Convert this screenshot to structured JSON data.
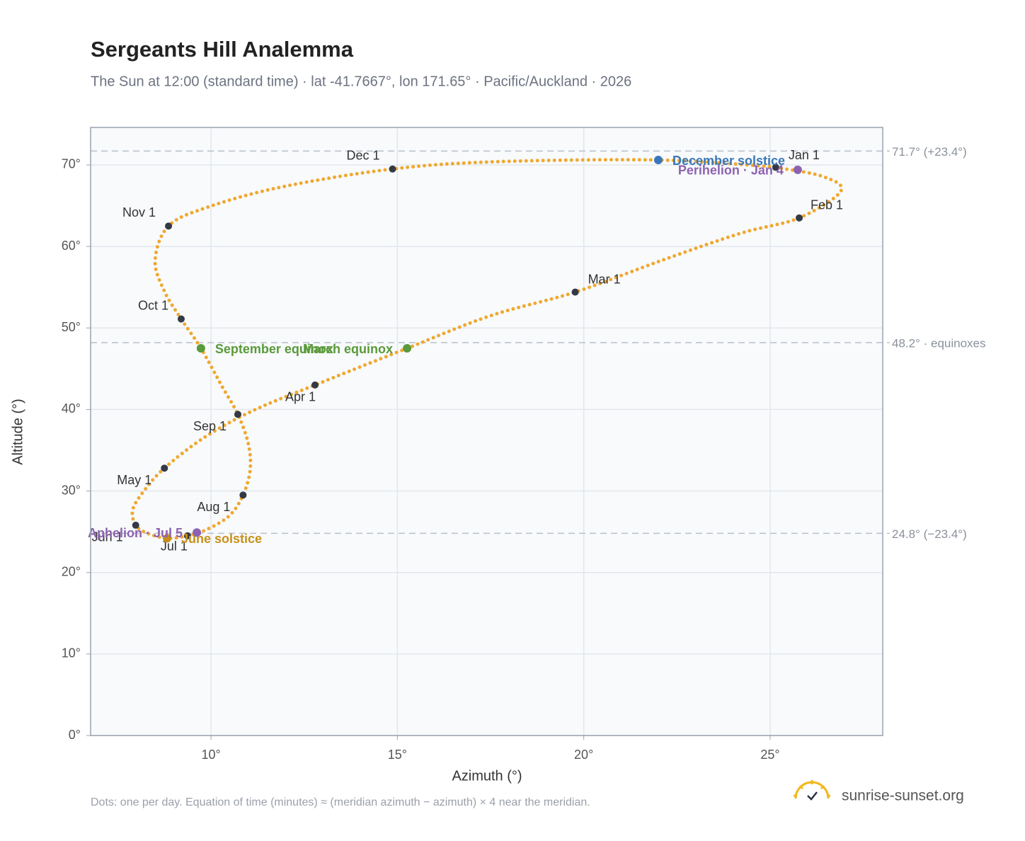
{
  "chart_data": {
    "type": "scatter",
    "title": "Sergeants Hill Analemma",
    "subtitle": "The Sun at 12:00 (standard time) · lat -41.7667°, lon 171.65° · Pacific/Auckland · 2026",
    "x_label": "Azimuth (°)",
    "y_label": "Altitude (°)",
    "footnote": "Dots: one per day. Equation of time (minutes) ≈ (meridian azimuth − azimuth) × 4 near the meridian.",
    "source": "sunrise-sunset.org",
    "xlim": [
      6.77,
      28.02
    ],
    "ylim": [
      0,
      74.6
    ],
    "xticks": [
      {
        "value": 10,
        "label": "10°"
      },
      {
        "value": 15,
        "label": "15°"
      },
      {
        "value": 20,
        "label": "20°"
      },
      {
        "value": 25,
        "label": "25°"
      }
    ],
    "yticks": [
      {
        "value": 0,
        "label": "0°"
      },
      {
        "value": 10,
        "label": "10°"
      },
      {
        "value": 20,
        "label": "20°"
      },
      {
        "value": 30,
        "label": "30°"
      },
      {
        "value": 40,
        "label": "40°"
      },
      {
        "value": 50,
        "label": "50°"
      },
      {
        "value": 60,
        "label": "60°"
      },
      {
        "value": 70,
        "label": "70°"
      }
    ],
    "grid": true,
    "color": "#f0a830",
    "x": [
      25.15,
      26.4,
      26.9,
      25.78,
      24.2,
      22.1,
      19.77,
      17.5,
      15.26,
      12.79,
      11.1,
      9.8,
      8.75,
      8.2,
      7.9,
      7.98,
      8.3,
      8.82,
      9.37,
      9.9,
      10.5,
      10.86,
      11.05,
      11.0,
      10.72,
      10.3,
      9.73,
      9.2,
      8.75,
      8.5,
      8.86,
      9.9,
      11.9,
      14.87,
      17.7,
      22.0,
      25.0
    ],
    "y": [
      69.7,
      68.6,
      66.8,
      63.5,
      61.6,
      58.3,
      54.4,
      51.5,
      47.5,
      43.0,
      39.8,
      36.5,
      32.8,
      30.0,
      27.7,
      25.8,
      24.8,
      24.2,
      24.5,
      25.3,
      27.0,
      29.5,
      32.6,
      35.8,
      39.4,
      42.8,
      47.5,
      51.1,
      54.5,
      58.3,
      62.5,
      64.8,
      67.3,
      69.5,
      70.4,
      70.6,
      69.8
    ],
    "reference_lines": [
      {
        "value": 71.7,
        "label": "71.7° (+23.4°)"
      },
      {
        "value": 48.2,
        "label": "48.2° · equinoxes"
      },
      {
        "value": 24.8,
        "label": "24.8° (−23.4°)"
      }
    ],
    "month_markers": [
      {
        "label": "Jan 1",
        "x": 25.15,
        "y": 69.7
      },
      {
        "label": "Feb 1",
        "x": 25.78,
        "y": 63.5
      },
      {
        "label": "Mar 1",
        "x": 19.77,
        "y": 54.4
      },
      {
        "label": "Apr 1",
        "x": 12.79,
        "y": 43.0
      },
      {
        "label": "May 1",
        "x": 8.75,
        "y": 32.8
      },
      {
        "label": "Jun 1",
        "x": 7.98,
        "y": 25.8
      },
      {
        "label": "Jul 1",
        "x": 9.37,
        "y": 24.5
      },
      {
        "label": "Aug 1",
        "x": 10.86,
        "y": 29.5
      },
      {
        "label": "Sep 1",
        "x": 10.72,
        "y": 39.4
      },
      {
        "label": "Oct 1",
        "x": 9.2,
        "y": 51.1
      },
      {
        "label": "Nov 1",
        "x": 8.86,
        "y": 62.5
      },
      {
        "label": "Dec 1",
        "x": 14.87,
        "y": 69.5
      }
    ],
    "marker_color": "#333a45",
    "events": [
      {
        "label": "December solstice",
        "x": 22.0,
        "y": 70.6,
        "color": "#3a77b8"
      },
      {
        "label": "Perihelion · Jan 4",
        "x": 25.74,
        "y": 69.4,
        "color": "#8e62b0"
      },
      {
        "label": "September equinox",
        "x": 9.73,
        "y": 47.5,
        "color": "#5a9a3a"
      },
      {
        "label": "March equinox",
        "x": 15.26,
        "y": 47.5,
        "color": "#5a9a3a"
      },
      {
        "label": "June solstice",
        "x": 8.82,
        "y": 24.2,
        "color": "#c8901a"
      },
      {
        "label": "Aphelion · Jul 5",
        "x": 9.62,
        "y": 24.9,
        "color": "#8e62b0"
      }
    ]
  }
}
